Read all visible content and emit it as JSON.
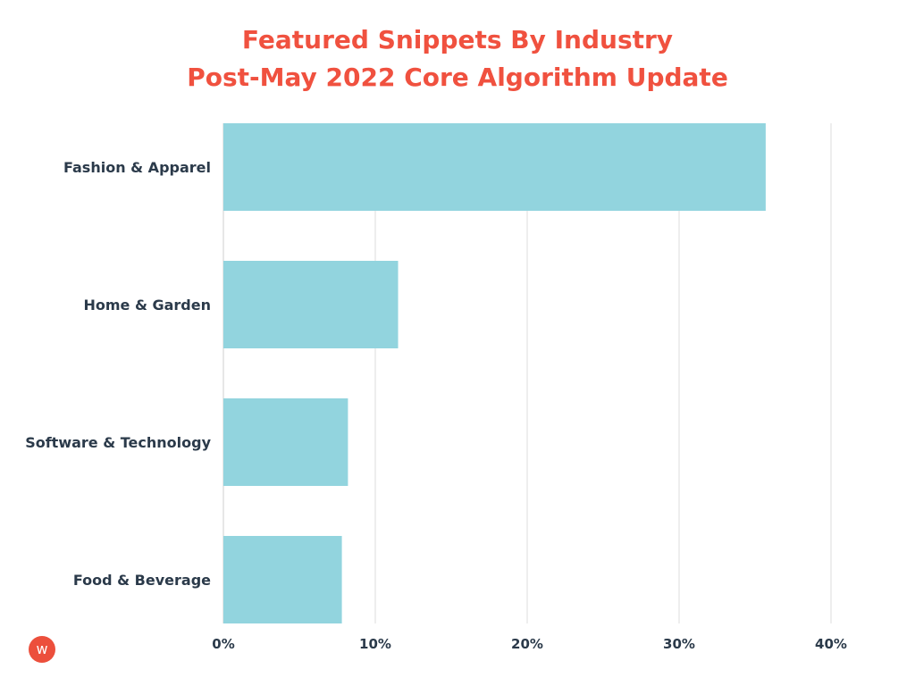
{
  "chart_data": {
    "type": "bar",
    "orientation": "horizontal",
    "title": "Featured Snippets By Industry",
    "subtitle": "Post-May 2022 Core Algorithm Update",
    "categories": [
      "Fashion & Apparel",
      "Home & Garden",
      "Software & Technology",
      "Food & Beverage"
    ],
    "values": [
      35.7,
      11.5,
      8.2,
      7.8
    ],
    "xlim": [
      0,
      40
    ],
    "xticks": [
      "0%",
      "10%",
      "20%",
      "30%",
      "40%"
    ],
    "xlabel": "",
    "ylabel": "",
    "grid": true,
    "bar_color": "#92d4de",
    "title_color": "#f0513f"
  },
  "logo": {
    "letter": "w",
    "color": "#ec4f3c"
  }
}
